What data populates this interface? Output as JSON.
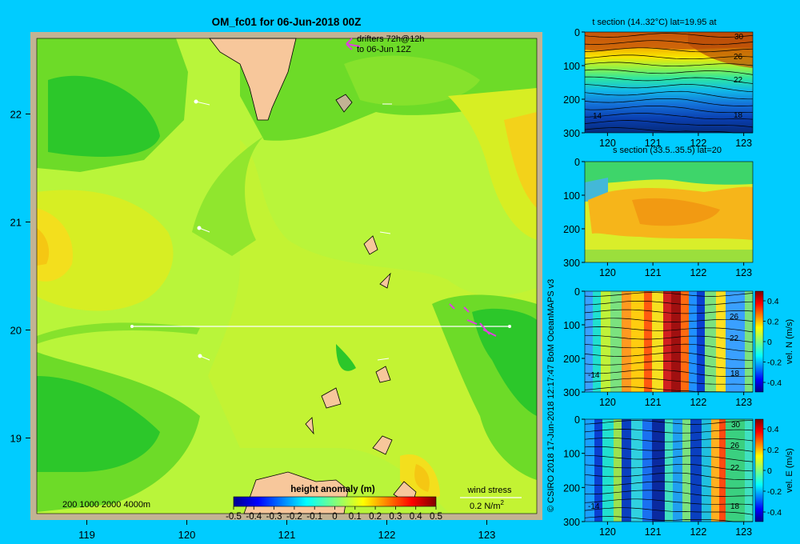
{
  "colors": {
    "background": "#00ccff",
    "frame": "#c2b394",
    "land": "#f7c79b",
    "drifter": "#e040e0",
    "transect": "#ffffff"
  },
  "main_map": {
    "title": "OM_fc01 for 06-Jun-2018 00Z",
    "drifter_note_line1": "drifters 72h@12h",
    "drifter_note_line2": "to 06-Jun 12Z",
    "isobaths_label": "200  1000  2000  4000m",
    "wind_label": "wind stress",
    "wind_scale": "0.2 N/m",
    "wind_scale_sup": "2",
    "colorbar_title": "height anomaly (m)",
    "colorbar_ticks": [
      "-0.5",
      "-0.4",
      "-0.3",
      "-0.2",
      "-0.1",
      "0",
      "0.1",
      "0.2",
      "0.3",
      "0.4",
      "0.5"
    ],
    "copyright": "© CSIRO 2018   17-Jun-2018 12:17:47 BoM OceanMAPS v3"
  },
  "chart_data": [
    {
      "type": "heatmap",
      "title": "OM_fc01 for 06-Jun-2018 00Z",
      "variable": "height anomaly (m)",
      "xlim": [
        118.5,
        123.5
      ],
      "ylim": [
        18.3,
        22.7
      ],
      "x_ticks": [
        "119",
        "120",
        "121",
        "122",
        "123"
      ],
      "y_ticks": [
        "19",
        "20",
        "21",
        "22"
      ],
      "color_range": [
        -0.5,
        0.5
      ],
      "transect": {
        "lat": 20,
        "lon": [
          119.5,
          123.2
        ]
      },
      "value_range_estimate": [
        -0.1,
        0.3
      ]
    },
    {
      "type": "heatmap",
      "title": "t section (14..32°C) lat=19.95 at",
      "x_ticks": [
        "120",
        "121",
        "122",
        "123"
      ],
      "y_ticks": [
        "0",
        "100",
        "200",
        "300"
      ],
      "xlim": [
        119.5,
        123.2
      ],
      "ylim": [
        300,
        0
      ],
      "contour_labels": [
        "30",
        "26",
        "22",
        "18",
        "14"
      ]
    },
    {
      "type": "heatmap",
      "title": "s section (33.5..35.5) lat=20",
      "x_ticks": [
        "120",
        "121",
        "122",
        "123"
      ],
      "y_ticks": [
        "0",
        "100",
        "200",
        "300"
      ],
      "xlim": [
        119.5,
        123.2
      ],
      "ylim": [
        300,
        0
      ]
    },
    {
      "type": "heatmap",
      "variable": "vel. N (m/s)",
      "x_ticks": [
        "120",
        "121",
        "122",
        "123"
      ],
      "y_ticks": [
        "0",
        "100",
        "200",
        "300"
      ],
      "xlim": [
        119.5,
        123.2
      ],
      "ylim": [
        300,
        0
      ],
      "color_range": [
        -0.4,
        0.4
      ],
      "colorbar_ticks": [
        "0.4",
        "0.2",
        "0",
        "-0.2",
        "-0.4"
      ],
      "contour_labels": [
        "26",
        "22",
        "18",
        "-14"
      ]
    },
    {
      "type": "heatmap",
      "variable": "vel. E (m/s)",
      "x_ticks": [
        "120",
        "121",
        "122",
        "123"
      ],
      "y_ticks": [
        "0",
        "100",
        "200",
        "300"
      ],
      "xlim": [
        119.5,
        123.2
      ],
      "ylim": [
        300,
        0
      ],
      "color_range": [
        -0.4,
        0.4
      ],
      "colorbar_ticks": [
        "0.4",
        "0.2",
        "0",
        "-0.2",
        "-0.4"
      ],
      "contour_labels": [
        "30",
        "26",
        "22",
        "18",
        "-14"
      ]
    }
  ]
}
